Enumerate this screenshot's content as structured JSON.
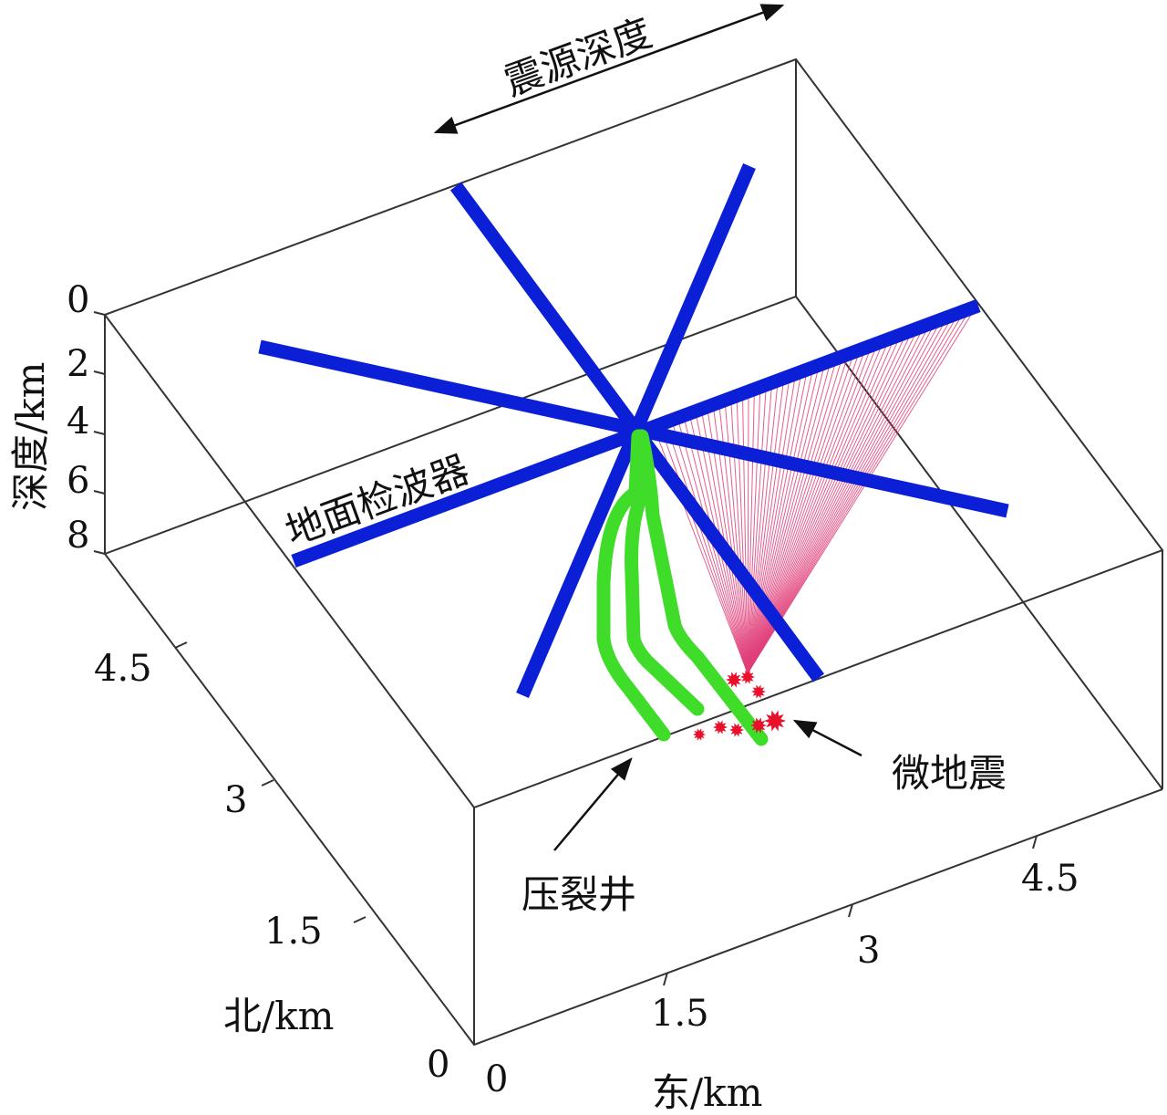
{
  "annotations": {
    "source_depth": "震源深度",
    "surface_geophones": "地面检波器",
    "microseismic": "微地震",
    "frac_well": "压裂井"
  },
  "axes": {
    "depth": {
      "label": "深度/km",
      "ticks": [
        "0",
        "2",
        "4",
        "6",
        "8"
      ]
    },
    "north": {
      "label": "北/km",
      "ticks": [
        "0",
        "1.5",
        "3",
        "4.5"
      ]
    },
    "east": {
      "label": "东/km",
      "ticks": [
        "0",
        "1.5",
        "3",
        "4.5"
      ]
    }
  },
  "colors": {
    "geophone_lines": "#0a1fd6",
    "wells": "#3fdc2a",
    "rays": "#e0407a",
    "events": "#e8102a",
    "box": "#333333"
  }
}
